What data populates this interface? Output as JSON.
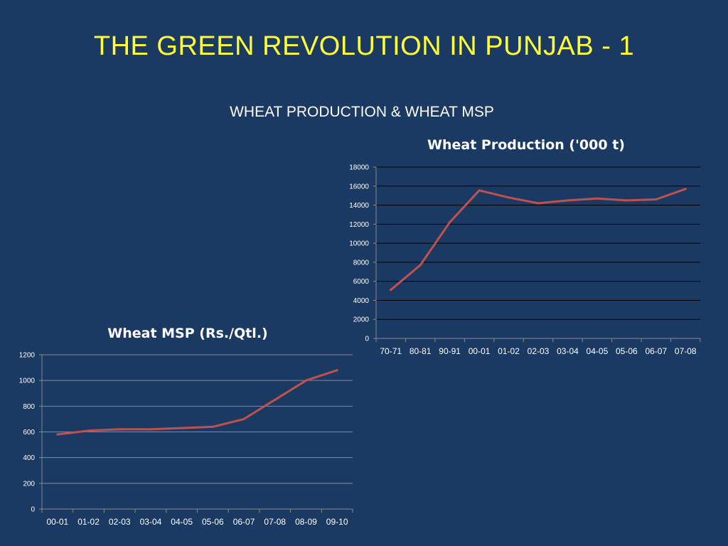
{
  "slide": {
    "title": "THE GREEN REVOLUTION IN PUNJAB - 1",
    "subtitle": "WHEAT PRODUCTION & WHEAT MSP",
    "background_color": "#1b3a63",
    "title_color": "#ffff33"
  },
  "chart_data": [
    {
      "type": "line",
      "title": "Wheat Production ('000 t)",
      "xlabel": "",
      "ylabel": "",
      "categories": [
        "70-71",
        "80-81",
        "90-91",
        "00-01",
        "01-02",
        "02-03",
        "03-04",
        "04-05",
        "05-06",
        "06-07",
        "07-08"
      ],
      "series": [
        {
          "values": [
            5100,
            7700,
            12200,
            15550,
            14800,
            14200,
            14500,
            14700,
            14500,
            14600,
            15700
          ],
          "color": "#c0504d"
        }
      ],
      "ylim": [
        0,
        18000
      ],
      "yticks": [
        0,
        2000,
        4000,
        6000,
        8000,
        10000,
        12000,
        14000,
        16000,
        18000
      ],
      "grid": true,
      "grid_color": "#000000",
      "legend": "none"
    },
    {
      "type": "line",
      "title": "Wheat MSP (Rs./Qtl.)",
      "xlabel": "",
      "ylabel": "",
      "categories": [
        "00-01",
        "01-02",
        "02-03",
        "03-04",
        "04-05",
        "05-06",
        "06-07",
        "07-08",
        "08-09",
        "09-10"
      ],
      "series": [
        {
          "values": [
            580,
            610,
            620,
            620,
            630,
            640,
            700,
            850,
            1000,
            1080
          ],
          "color": "#c0504d"
        }
      ],
      "ylim": [
        0,
        1200
      ],
      "yticks": [
        0,
        200,
        400,
        600,
        800,
        1000,
        1200
      ],
      "grid": true,
      "grid_color": "#8a8a8a",
      "legend": "none"
    }
  ]
}
